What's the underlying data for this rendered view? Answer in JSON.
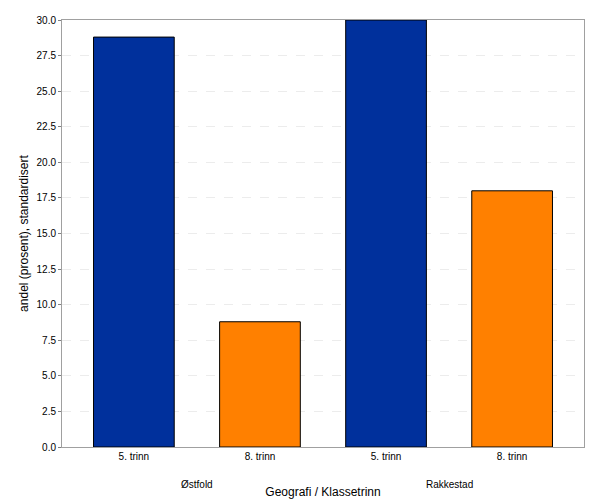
{
  "chart_data": {
    "type": "bar",
    "x_label": "Geografi / Klassetrinn",
    "y_label": "andel (prosent), standardisert",
    "categories": [
      "Østfold",
      "Rakkestad"
    ],
    "series": [
      {
        "name": "5. trinn",
        "color": "#00309c",
        "values": [
          28.8,
          30.0
        ]
      },
      {
        "name": "8. trinn",
        "color": "#ff8000",
        "values": [
          8.8,
          18.0
        ]
      }
    ],
    "ylim": [
      0,
      30
    ],
    "yticks": [
      {
        "value": 0,
        "label": "0.0"
      },
      2.5,
      {
        "value": 5,
        "label": "5.0"
      },
      7.5,
      {
        "value": 10,
        "label": "10.0"
      },
      12.5,
      {
        "value": 15,
        "label": "15.0"
      },
      17.5,
      {
        "value": 20,
        "label": "20.0"
      },
      22.5,
      {
        "value": 25,
        "label": "25.0"
      },
      27.5,
      {
        "value": 30,
        "label": "30.0"
      }
    ],
    "grid": true
  }
}
